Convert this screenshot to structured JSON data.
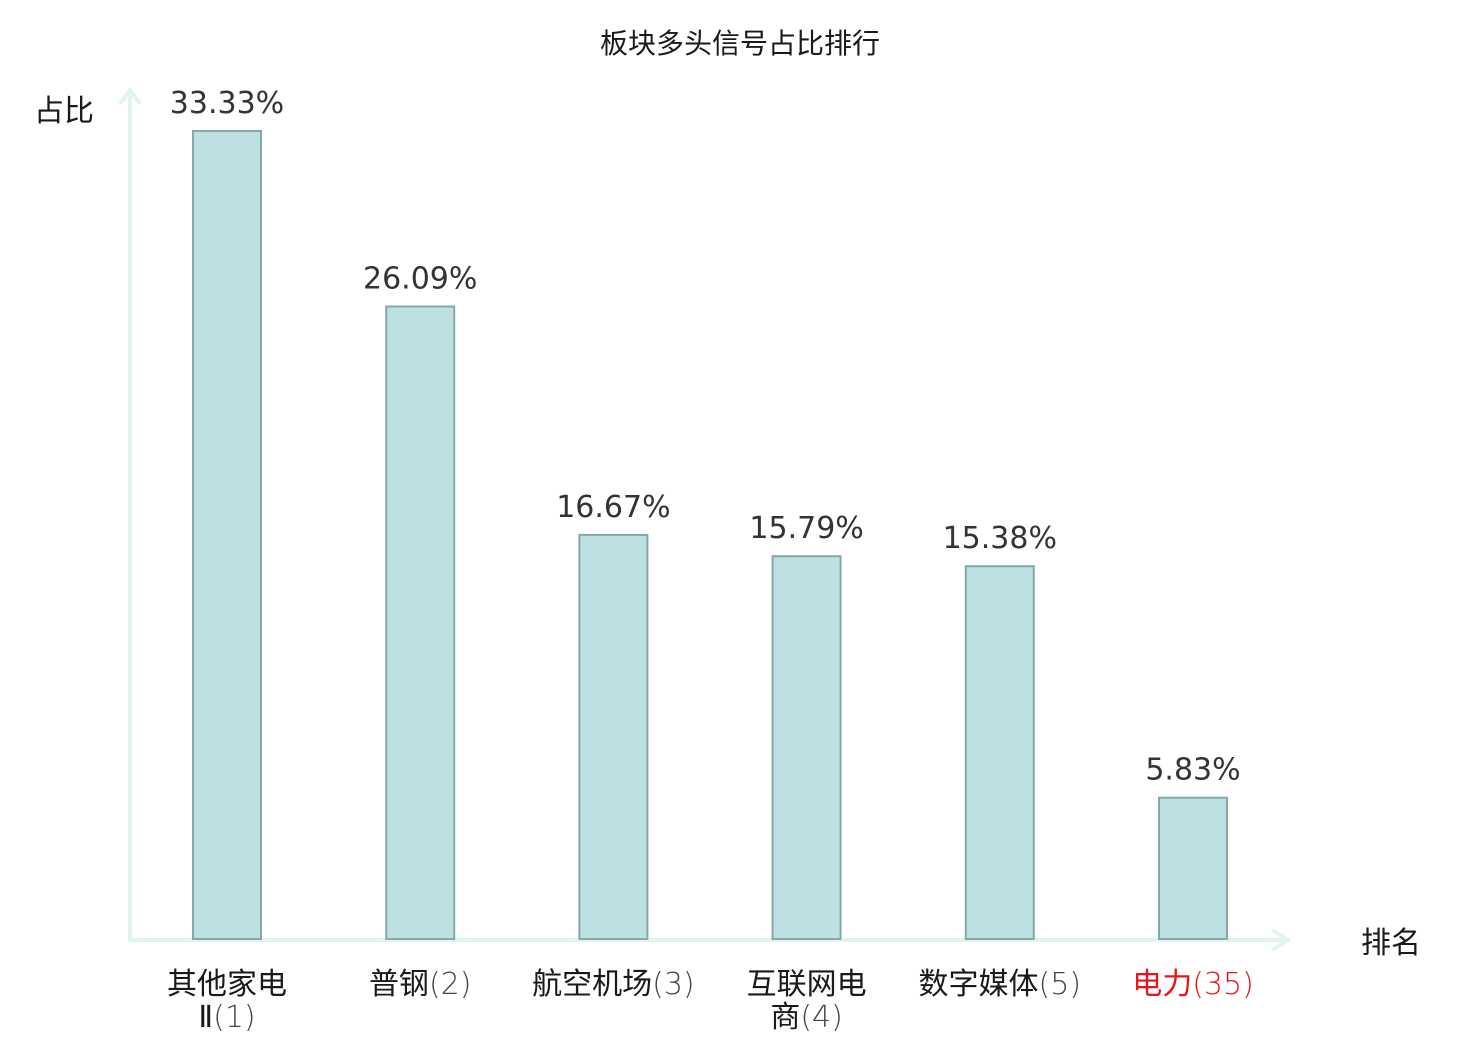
{
  "chart_data": {
    "type": "bar",
    "title": "板块多头信号占比排行",
    "xlabel": "排名",
    "ylabel": "占比",
    "ylim": [
      0,
      35
    ],
    "grid": false,
    "legend": "none",
    "categories": [
      {
        "name_lines": [
          "其他家电",
          "Ⅱ"
        ],
        "rank": "(1)",
        "highlight": false
      },
      {
        "name_lines": [
          "普钢"
        ],
        "rank": "(2)",
        "highlight": false
      },
      {
        "name_lines": [
          "航空机场"
        ],
        "rank": "(3)",
        "highlight": false
      },
      {
        "name_lines": [
          "互联网电",
          "商"
        ],
        "rank": "(4)",
        "highlight": false
      },
      {
        "name_lines": [
          "数字媒体"
        ],
        "rank": "(5)",
        "highlight": false
      },
      {
        "name_lines": [
          "电力"
        ],
        "rank": "(35)",
        "highlight": true
      }
    ],
    "values": [
      33.33,
      26.09,
      16.67,
      15.79,
      15.38,
      5.83
    ],
    "value_labels": [
      "33.33%",
      "26.09%",
      "16.67%",
      "15.79%",
      "15.38%",
      "5.83%"
    ]
  },
  "colors": {
    "bar_fill": "#bde0e3",
    "bar_stroke": "#86a8aa",
    "axis": "#e2f3f1",
    "text": "#1a1a1a",
    "value_text": "#333333",
    "rank_text": "#444444",
    "highlight": "#e8151b"
  }
}
